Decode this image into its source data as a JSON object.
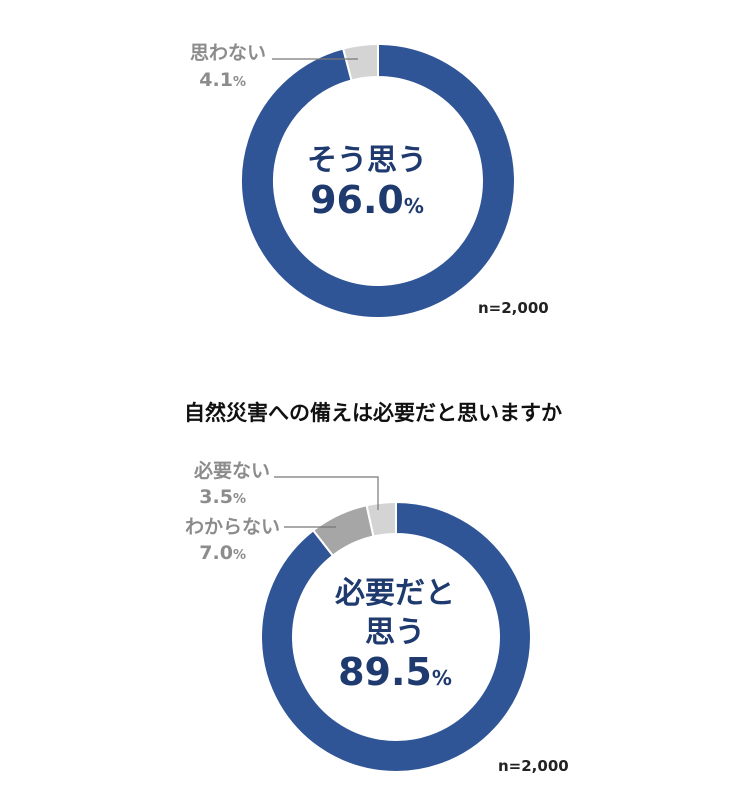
{
  "chart_data": [
    {
      "type": "pie",
      "title": "",
      "unit": "%",
      "center_label": "そう思う",
      "center_value": "96.0",
      "slices": [
        {
          "label": "そう思う",
          "value": 96.0,
          "color": "#2f5597"
        },
        {
          "label": "思わない",
          "value": 4.1,
          "color": "#d4d4d4"
        }
      ],
      "callouts": [
        {
          "label": "思わない",
          "value": "4.1"
        }
      ],
      "n_label": "n=2,000"
    },
    {
      "type": "pie",
      "title": "自然災害への備えは必要だと思いますか",
      "unit": "%",
      "center_label": [
        "必要だと",
        "思う"
      ],
      "center_value": "89.5",
      "slices": [
        {
          "label": "必要だと思う",
          "value": 89.5,
          "color": "#2f5597"
        },
        {
          "label": "わからない",
          "value": 7.0,
          "color": "#a6a6a6"
        },
        {
          "label": "必要ない",
          "value": 3.5,
          "color": "#d4d4d4"
        }
      ],
      "callouts": [
        {
          "label": "必要ない",
          "value": "3.5"
        },
        {
          "label": "わからない",
          "value": "7.0"
        }
      ],
      "n_label": "n=2,000"
    }
  ]
}
